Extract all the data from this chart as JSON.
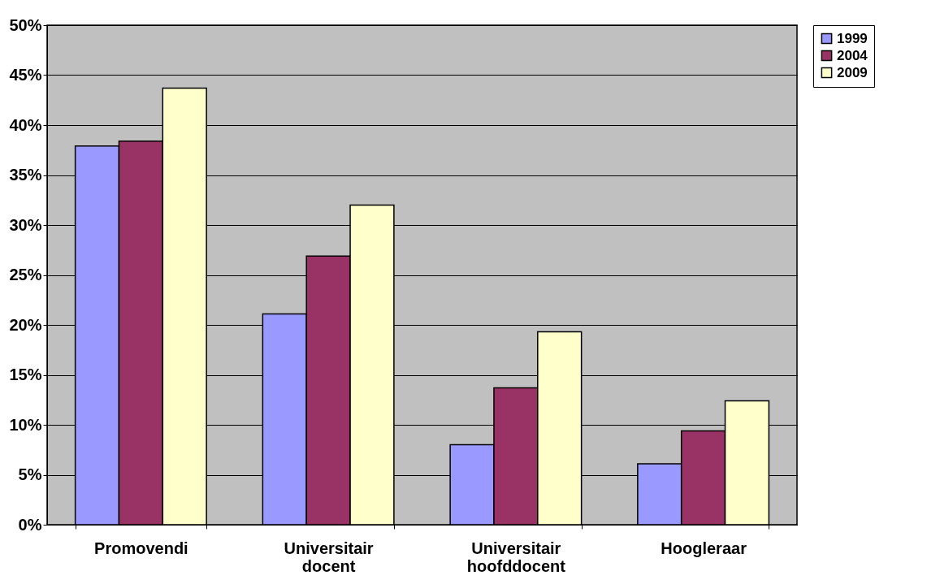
{
  "chart_data": {
    "type": "bar",
    "categories": [
      "Promovendi",
      "Universitair docent",
      "Universitair hoofddocent",
      "Hoogleraar"
    ],
    "series": [
      {
        "name": "1999",
        "color": "#9999ff",
        "values": [
          37.9,
          21.1,
          8.0,
          6.1
        ]
      },
      {
        "name": "2004",
        "color": "#993366",
        "values": [
          38.4,
          26.9,
          13.7,
          9.4
        ]
      },
      {
        "name": "2009",
        "color": "#ffffcc",
        "values": [
          43.7,
          32.0,
          19.3,
          12.4
        ]
      }
    ],
    "ylim": [
      0,
      50
    ],
    "yticks": [
      {
        "value": 0,
        "label": "0%"
      },
      {
        "value": 5,
        "label": "5%"
      },
      {
        "value": 10,
        "label": "10%"
      },
      {
        "value": 15,
        "label": "15%"
      },
      {
        "value": 20,
        "label": "20%"
      },
      {
        "value": 25,
        "label": "25%"
      },
      {
        "value": 30,
        "label": "30%"
      },
      {
        "value": 35,
        "label": "35%"
      },
      {
        "value": 40,
        "label": "40%"
      },
      {
        "value": 45,
        "label": "45%"
      },
      {
        "value": 50,
        "label": "50%"
      }
    ],
    "grid": "y",
    "legend": "right"
  }
}
